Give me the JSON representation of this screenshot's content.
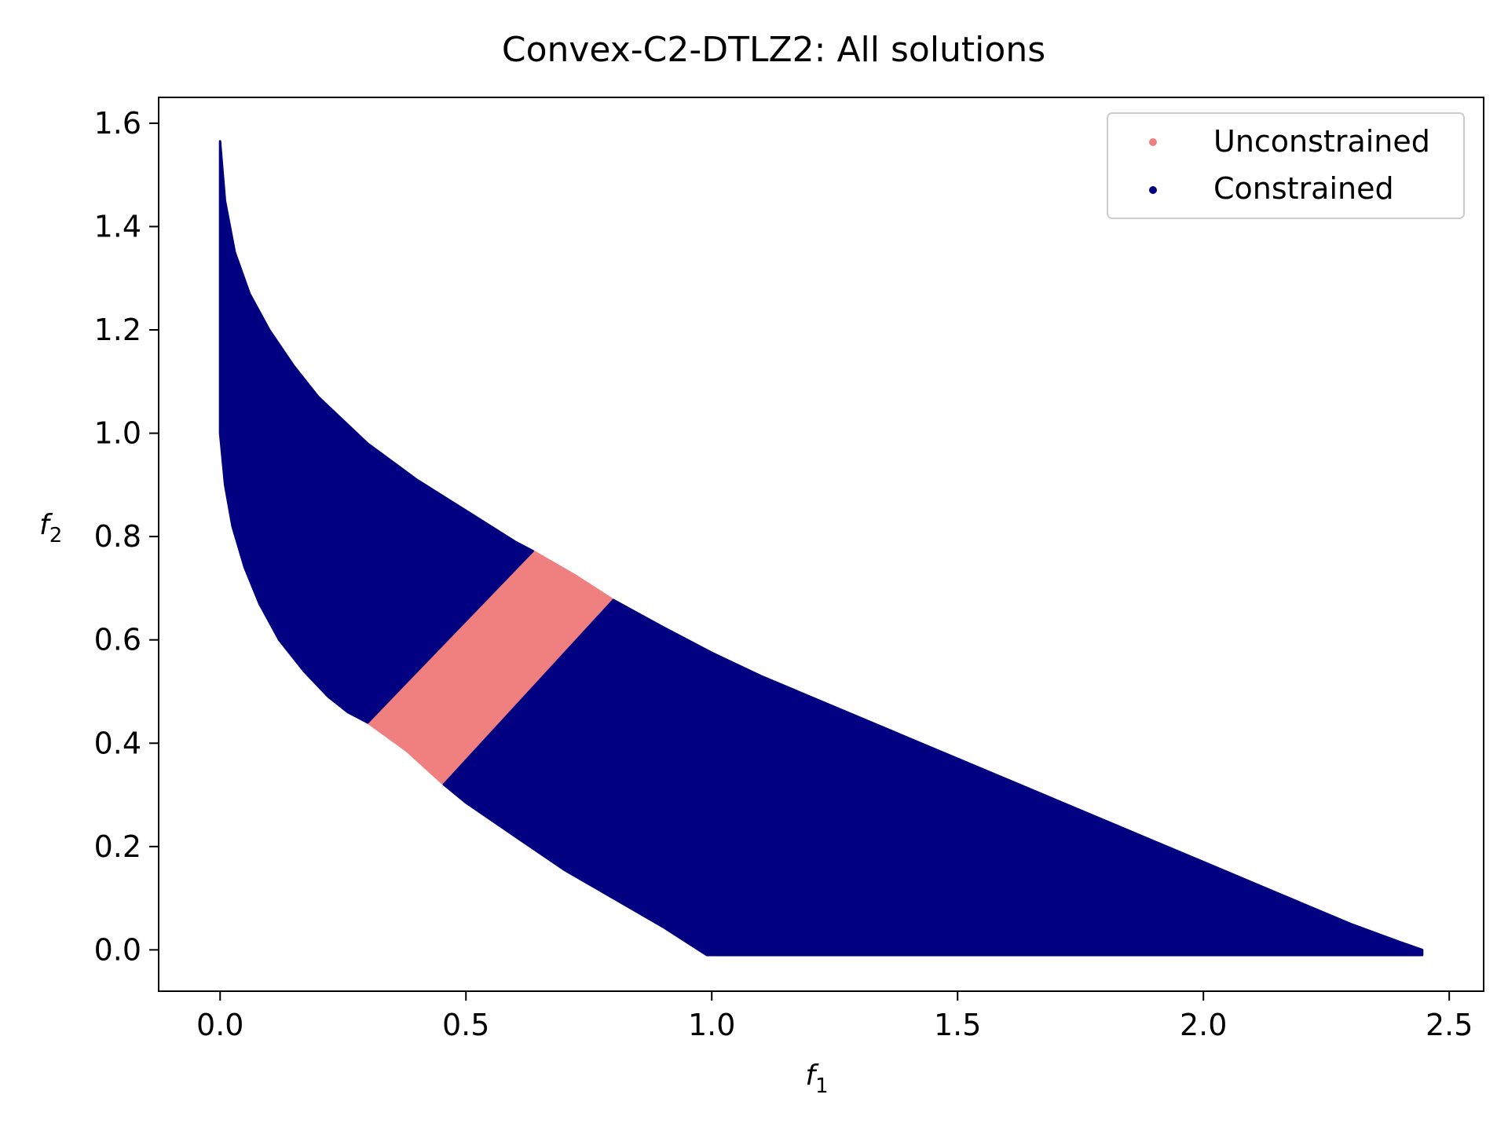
{
  "chart_data": {
    "type": "scatter",
    "title": "Convex-C2-DTLZ2: All solutions",
    "xlabel": {
      "main": "f",
      "sub": "1"
    },
    "ylabel": {
      "main": "f",
      "sub": "2"
    },
    "xlim": [
      -0.125,
      2.57
    ],
    "ylim": [
      -0.08,
      1.65
    ],
    "xticks": [
      0.0,
      0.5,
      1.0,
      1.5,
      2.0,
      2.5
    ],
    "xtick_labels": [
      "0.0",
      "0.5",
      "1.0",
      "1.5",
      "2.0",
      "2.5"
    ],
    "yticks": [
      0.0,
      0.2,
      0.4,
      0.6,
      0.8,
      1.0,
      1.2,
      1.4,
      1.6
    ],
    "ytick_labels": [
      "0.0",
      "0.2",
      "0.4",
      "0.6",
      "0.8",
      "1.0",
      "1.2",
      "1.4",
      "1.6"
    ],
    "grid": false,
    "legend_position": "top-right",
    "legend": [
      "Unconstrained",
      "Constrained"
    ],
    "series": [
      {
        "name": "Unconstrained",
        "color": "#f08080",
        "region": {
          "outer_edge": [
            [
              0.636,
              0.772
            ],
            [
              0.72,
              0.726
            ],
            [
              0.8,
              0.677
            ]
          ],
          "inner_edge": [
            [
              0.3,
              0.44
            ],
            [
              0.38,
              0.385
            ],
            [
              0.455,
              0.32
            ]
          ]
        }
      },
      {
        "name": "Constrained",
        "color": "#000080",
        "regions": [
          {
            "outer_edge": [
              [
                0.0,
                1.565
              ],
              [
                0.01,
                1.45
              ],
              [
                0.03,
                1.35
              ],
              [
                0.06,
                1.27
              ],
              [
                0.1,
                1.2
              ],
              [
                0.15,
                1.13
              ],
              [
                0.2,
                1.07
              ],
              [
                0.3,
                0.98
              ],
              [
                0.4,
                0.91
              ],
              [
                0.5,
                0.85
              ],
              [
                0.6,
                0.79
              ],
              [
                0.636,
                0.772
              ]
            ],
            "inner_edge": [
              [
                0.0,
                1.0
              ],
              [
                0.01,
                0.9
              ],
              [
                0.025,
                0.82
              ],
              [
                0.05,
                0.74
              ],
              [
                0.08,
                0.67
              ],
              [
                0.12,
                0.6
              ],
              [
                0.17,
                0.54
              ],
              [
                0.22,
                0.49
              ],
              [
                0.26,
                0.46
              ],
              [
                0.3,
                0.44
              ]
            ]
          },
          {
            "outer_edge": [
              [
                0.8,
                0.677
              ],
              [
                0.9,
                0.625
              ],
              [
                1.0,
                0.575
              ],
              [
                1.1,
                0.53
              ],
              [
                1.2,
                0.49
              ],
              [
                1.3,
                0.45
              ],
              [
                1.4,
                0.41
              ],
              [
                1.5,
                0.37
              ],
              [
                1.6,
                0.33
              ],
              [
                1.7,
                0.29
              ],
              [
                1.8,
                0.25
              ],
              [
                1.9,
                0.21
              ],
              [
                2.0,
                0.17
              ],
              [
                2.1,
                0.13
              ],
              [
                2.2,
                0.09
              ],
              [
                2.3,
                0.05
              ],
              [
                2.4,
                0.015
              ],
              [
                2.445,
                0.0
              ]
            ],
            "inner_edge": [
              [
                0.455,
                0.32
              ],
              [
                0.5,
                0.285
              ],
              [
                0.6,
                0.22
              ],
              [
                0.7,
                0.155
              ],
              [
                0.8,
                0.1
              ],
              [
                0.9,
                0.045
              ],
              [
                0.99,
                -0.01
              ],
              [
                2.445,
                -0.01
              ]
            ]
          }
        ]
      }
    ]
  }
}
